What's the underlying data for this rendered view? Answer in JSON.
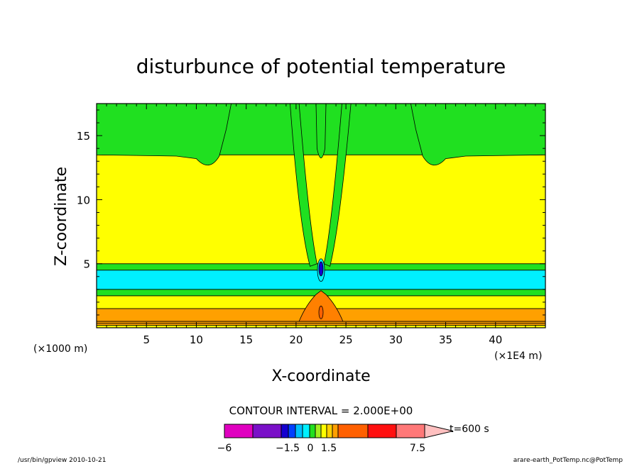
{
  "chart_data": {
    "type": "heatmap",
    "title": "disturbunce of potential temperature",
    "xlabel": "X-coordinate",
    "ylabel": "Z-coordinate",
    "x_unit_left": "(×1000 m)",
    "x_unit_right": "(×1E4 m)",
    "xlim": [
      0,
      45
    ],
    "ylim": [
      0,
      17.5
    ],
    "x_ticks": [
      "5",
      "10",
      "15",
      "20",
      "25",
      "30",
      "35",
      "40"
    ],
    "x_tick_values": [
      5,
      10,
      15,
      20,
      25,
      30,
      35,
      40
    ],
    "y_ticks": [
      "5",
      "10",
      "15"
    ],
    "y_tick_values": [
      5,
      10,
      15
    ],
    "contour_interval_text": "CONTOUR INTERVAL = 2.000E+00",
    "time_label": "t=600 s",
    "colorbar": {
      "colors": [
        "#e000c0",
        "#7a10c8",
        "#1400d0",
        "#0040ff",
        "#00c0ff",
        "#00f0ff",
        "#20e020",
        "#a0f020",
        "#ffff00",
        "#ffd000",
        "#ffa000",
        "#ff6000",
        "#ff1010",
        "#ff7878",
        "#ffc0c0"
      ],
      "labels": [
        "−6",
        "−1.5",
        "0",
        "1.5",
        "7.5"
      ]
    },
    "layers": [
      {
        "z": [
          0.2,
          0.5
        ],
        "value": "orange",
        "color": "#ffa000"
      },
      {
        "z": [
          0.5,
          1.5
        ],
        "value": "light orange",
        "color": "#ffa000"
      },
      {
        "z": [
          1.5,
          2.5
        ],
        "value": "near zero",
        "color": "#ffff00"
      },
      {
        "z": [
          2.5,
          3.0
        ],
        "value": "small negative",
        "color": "#20e020"
      },
      {
        "z": [
          3.0,
          4.5
        ],
        "value": "negative",
        "color": "#00f0ff"
      },
      {
        "z": [
          4.5,
          5.0
        ],
        "value": "small negative",
        "color": "#20e020"
      },
      {
        "z": [
          5.0,
          13.5
        ],
        "value": "near zero",
        "color": "#ffff00"
      },
      {
        "z": [
          13.5,
          17.5
        ],
        "value": "small negative",
        "color": "#20e020"
      }
    ],
    "colors": {
      "yellow": "#ffff00",
      "green": "#20e020",
      "cyan": "#00f0ff",
      "orange": "#ffa000",
      "deep_orange": "#ff8000",
      "blue": "#1400d0"
    }
  },
  "footer": {
    "left": "/usr/bin/gpview  2010-10-21",
    "right": "arare-earth_PotTemp.nc@PotTemp"
  }
}
